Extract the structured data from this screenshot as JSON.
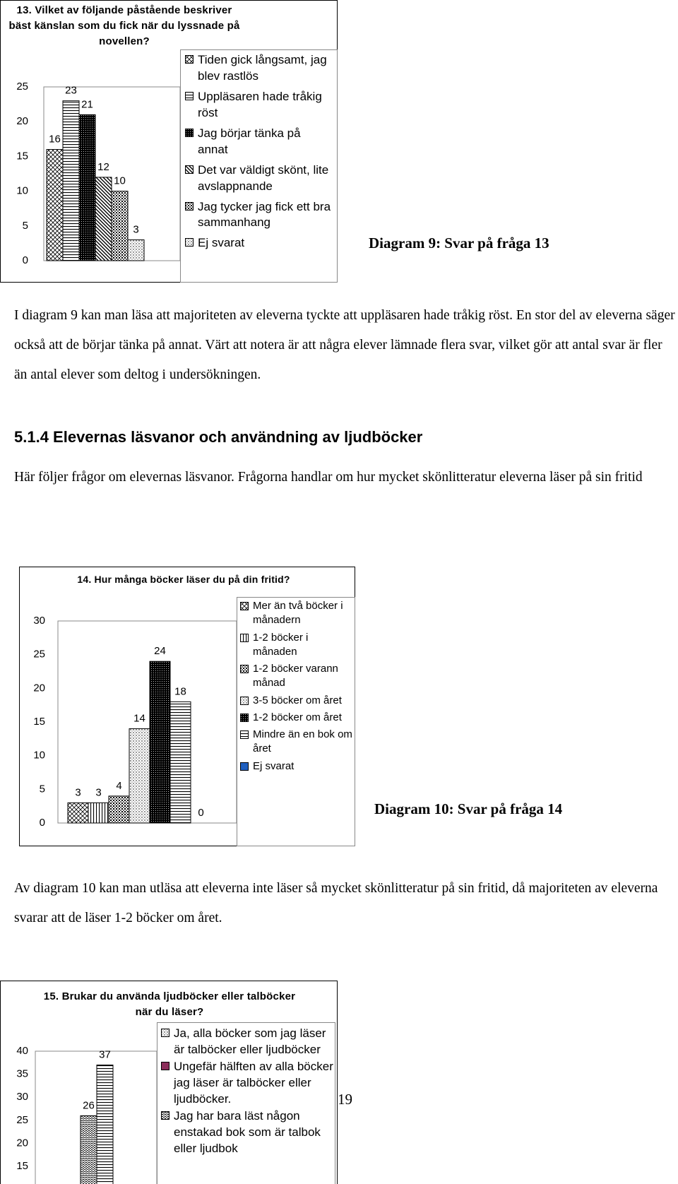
{
  "chart_data": [
    {
      "type": "bar",
      "title": "13. Vilket av följande påstående beskriver bäst känslan som du fick när du lyssnade på novellen?",
      "ylim": [
        0,
        25
      ],
      "yticks": [
        0,
        5,
        10,
        15,
        20,
        25
      ],
      "series": [
        {
          "name": "Tiden gick långsamt, jag blev rastlös",
          "color": "#ffffff",
          "values": [
            16
          ]
        },
        {
          "name": "Uppläsaren hade tråkig röst",
          "color": "#ffffff",
          "values": [
            23
          ]
        },
        {
          "name": "Jag börjar tänka på annat",
          "color": "#222222",
          "values": [
            21
          ]
        },
        {
          "name": "Det var väldigt skönt, lite avslappnande",
          "color": "#ffffff",
          "values": [
            12
          ]
        },
        {
          "name": "Jag tycker jag fick ett bra sammanhang",
          "color": "#ffffff",
          "values": [
            10
          ]
        },
        {
          "name": "Ej svarat",
          "color": "#ffffff",
          "values": [
            3
          ]
        }
      ]
    },
    {
      "type": "bar",
      "title": "14. Hur många böcker läser du på din fritid?",
      "ylim": [
        0,
        30
      ],
      "yticks": [
        0,
        5,
        10,
        15,
        20,
        25,
        30
      ],
      "series": [
        {
          "name": "Mer än två böcker i månadern",
          "color": "#ffffff",
          "values": [
            3
          ]
        },
        {
          "name": "1-2 böcker i månaden",
          "color": "#ffffff",
          "values": [
            3
          ]
        },
        {
          "name": "1-2 böcker varann månad",
          "color": "#ffffff",
          "values": [
            4
          ]
        },
        {
          "name": "3-5 böcker om året",
          "color": "#ffffff",
          "values": [
            14
          ]
        },
        {
          "name": "1-2 böcker om året",
          "color": "#111111",
          "values": [
            24
          ]
        },
        {
          "name": "Mindre än en bok om året",
          "color": "#ffffff",
          "values": [
            18
          ]
        },
        {
          "name": "Ej svarat",
          "color": "#1f5fbf",
          "values": [
            0
          ]
        }
      ]
    },
    {
      "type": "bar",
      "title": "15. Brukar du använda ljudböcker eller talböcker när du läser?",
      "ylim": [
        0,
        40
      ],
      "yticks": [
        15,
        20,
        25,
        30,
        35,
        40
      ],
      "series": [
        {
          "name": "Ja, alla böcker som jag läser är talböcker eller ljudböcker",
          "color": "#ffffff",
          "values": [
            null
          ]
        },
        {
          "name": "Ungefär hälften av alla böcker jag läser är talböcker eller ljudböcker.",
          "color": "#8b2e5a",
          "values": [
            null
          ]
        },
        {
          "name": "Jag har bara läst någon enstakad bok som är talbok eller ljudbok",
          "color": "#ffffff",
          "values": [
            26
          ]
        },
        {
          "color": "#ffffff",
          "values": [
            37
          ]
        }
      ]
    }
  ],
  "document": {
    "captions": [
      "Diagram 9: Svar på fråga 13",
      "Diagram 10: Svar på fråga 14"
    ],
    "paragraphs": [
      "I diagram 9 kan man läsa att majoriteten av eleverna tyckte att uppläsaren hade tråkig röst. En stor del av eleverna säger också att de börjar tänka på annat. Värt att notera är att några elever lämnade flera svar, vilket gör att antal svar är fler än antal elever som deltog i undersökningen.",
      "Här följer frågor om elevernas läsvanor. Frågorna handlar om hur mycket skönlitteratur eleverna läser på sin fritid",
      "Av diagram 10 kan man utläsa att eleverna inte läser så mycket skönlitteratur på sin fritid, då majoriteten av eleverna svarar att de läser 1-2 böcker om året."
    ],
    "heading": "5.1.4 Elevernas läsvanor och användning av ljudböcker",
    "page_number": "19"
  }
}
